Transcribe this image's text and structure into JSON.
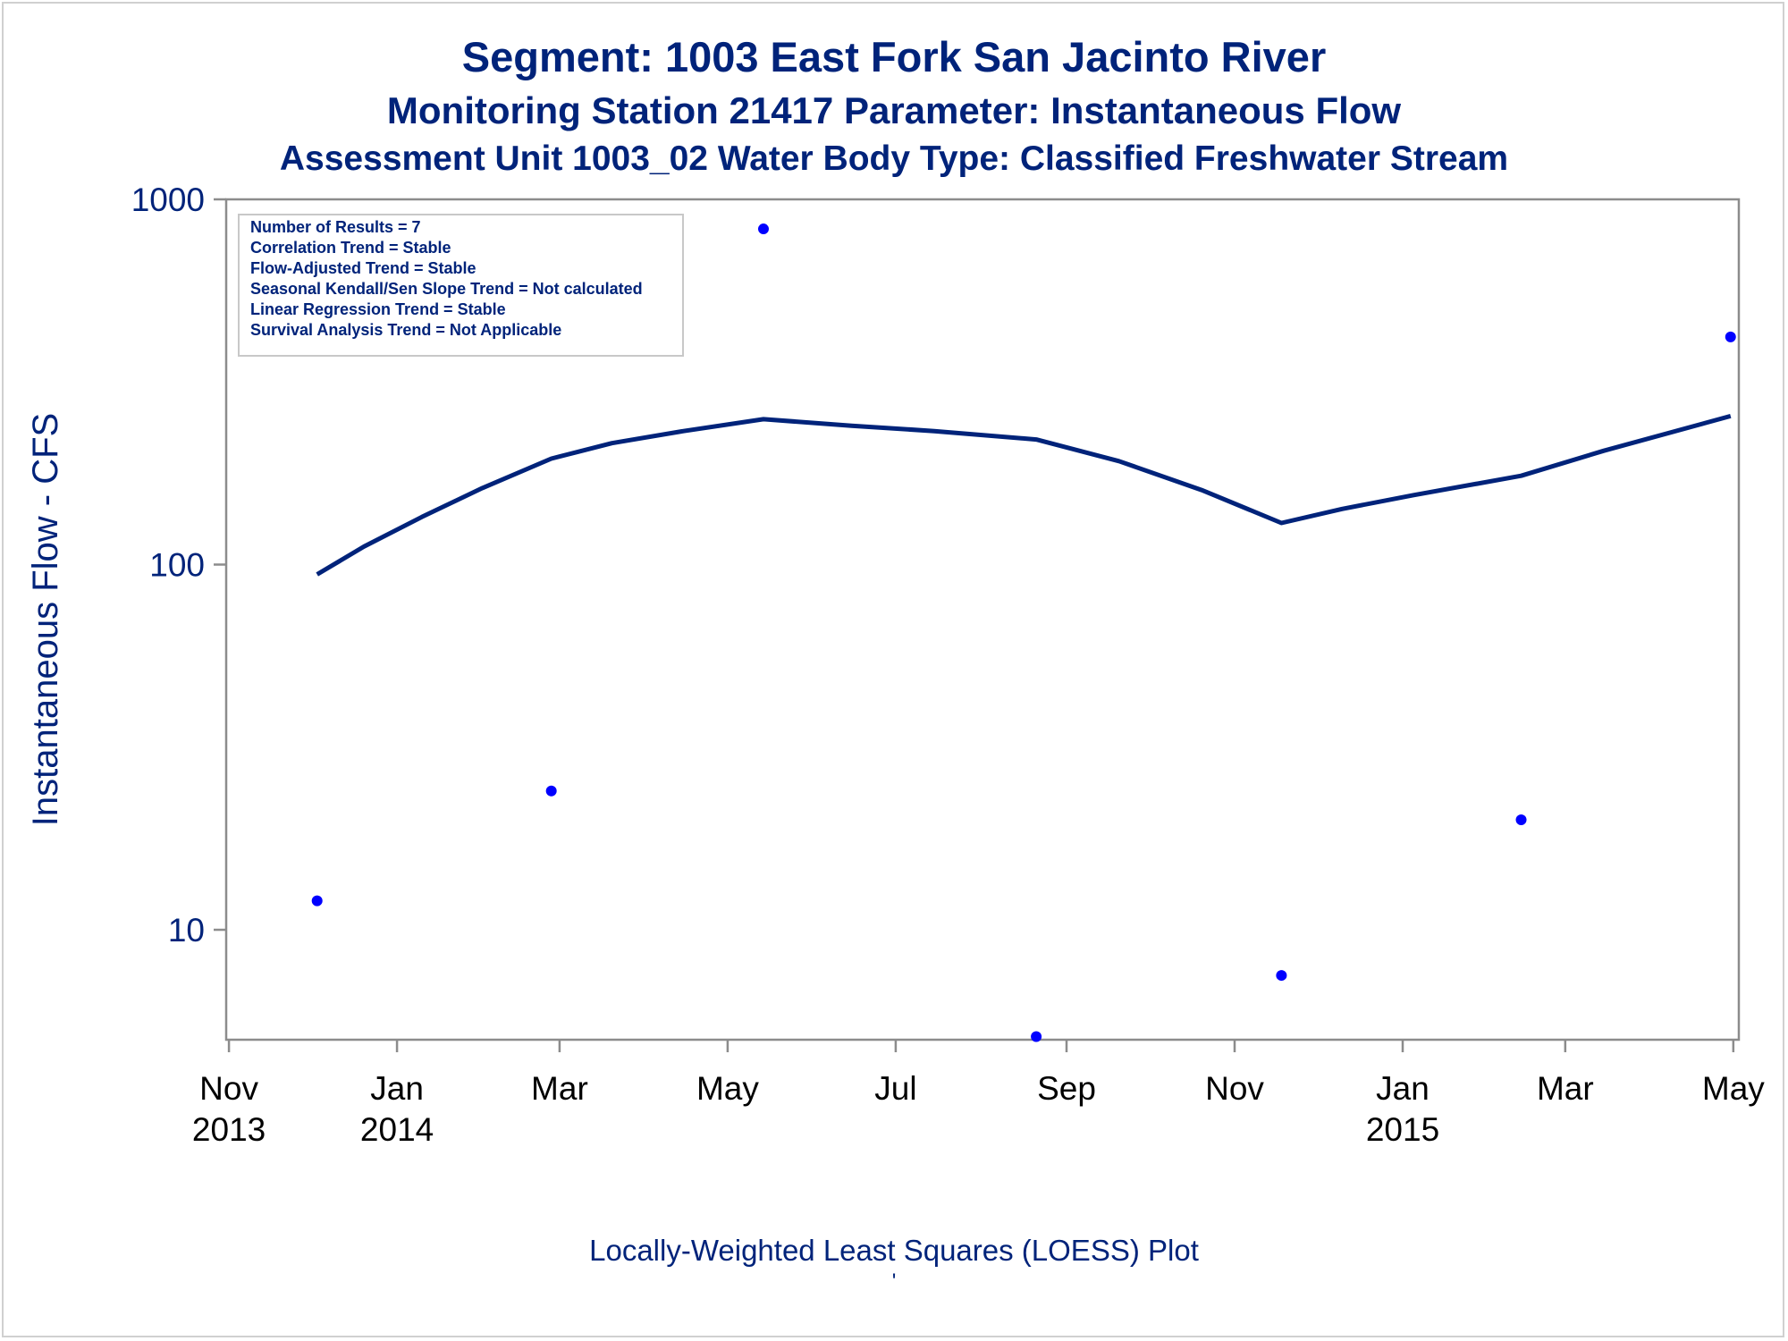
{
  "chart_data": {
    "type": "scatter",
    "title": "Segment: 1003  East Fork San Jacinto River",
    "subtitles": [
      "Monitoring Station 21417 Parameter: Instantaneous Flow",
      "Assessment Unit 1003_02   Water Body Type: Classified Freshwater Stream"
    ],
    "ylabel": "Instantaneous Flow - CFS",
    "xlabel": "",
    "footnote": "Locally-Weighted Least Squares (LOESS) Plot",
    "footnote2": "'",
    "y_scale": "log",
    "ylim": [
      5,
      1000
    ],
    "xlim": [
      "2013-10-31",
      "2015-05-03"
    ],
    "y_ticks": [
      {
        "value": 10,
        "label": "10"
      },
      {
        "value": 100,
        "label": "100"
      },
      {
        "value": 1000,
        "label": "1000"
      }
    ],
    "x_ticks": [
      {
        "date": "2013-11-01",
        "line1": "Nov",
        "line2": "2013"
      },
      {
        "date": "2014-01-01",
        "line1": "Jan",
        "line2": "2014"
      },
      {
        "date": "2014-03-01",
        "line1": "Mar",
        "line2": ""
      },
      {
        "date": "2014-05-01",
        "line1": "May",
        "line2": ""
      },
      {
        "date": "2014-07-01",
        "line1": "Jul",
        "line2": ""
      },
      {
        "date": "2014-09-01",
        "line1": "Sep",
        "line2": ""
      },
      {
        "date": "2014-11-01",
        "line1": "Nov",
        "line2": ""
      },
      {
        "date": "2015-01-01",
        "line1": "Jan",
        "line2": "2015"
      },
      {
        "date": "2015-03-01",
        "line1": "Mar",
        "line2": ""
      },
      {
        "date": "2015-05-01",
        "line1": "May",
        "line2": ""
      }
    ],
    "series": [
      {
        "kind": "points",
        "color": "#0000ff",
        "points": [
          {
            "x": "2013-12-03",
            "y": 12
          },
          {
            "x": "2014-02-26",
            "y": 24
          },
          {
            "x": "2014-05-14",
            "y": 830
          },
          {
            "x": "2014-08-21",
            "y": 5.1
          },
          {
            "x": "2014-11-18",
            "y": 7.5
          },
          {
            "x": "2015-02-13",
            "y": 20
          },
          {
            "x": "2015-04-30",
            "y": 420
          }
        ]
      },
      {
        "kind": "loess",
        "color": "#00237a",
        "points": [
          {
            "x": "2013-12-03",
            "y": 94
          },
          {
            "x": "2013-12-20",
            "y": 112
          },
          {
            "x": "2014-01-10",
            "y": 135
          },
          {
            "x": "2014-02-01",
            "y": 162
          },
          {
            "x": "2014-02-26",
            "y": 195
          },
          {
            "x": "2014-03-20",
            "y": 215
          },
          {
            "x": "2014-04-15",
            "y": 232
          },
          {
            "x": "2014-05-14",
            "y": 250
          },
          {
            "x": "2014-06-15",
            "y": 240
          },
          {
            "x": "2014-07-15",
            "y": 232
          },
          {
            "x": "2014-08-21",
            "y": 220
          },
          {
            "x": "2014-09-20",
            "y": 192
          },
          {
            "x": "2014-10-20",
            "y": 160
          },
          {
            "x": "2014-11-18",
            "y": 130
          },
          {
            "x": "2014-12-10",
            "y": 142
          },
          {
            "x": "2015-01-05",
            "y": 155
          },
          {
            "x": "2015-02-13",
            "y": 175
          },
          {
            "x": "2015-03-15",
            "y": 205
          },
          {
            "x": "2015-04-30",
            "y": 255
          }
        ]
      }
    ],
    "legend_placement": "top-left",
    "stats_box": [
      "Number of Results = 7",
      "Correlation Trend = Stable",
      "Flow-Adjusted Trend = Stable",
      "Seasonal Kendall/Sen Slope Trend = Not calculated",
      "Linear Regression Trend = Stable",
      "Survival Analysis Trend = Not Applicable"
    ]
  }
}
